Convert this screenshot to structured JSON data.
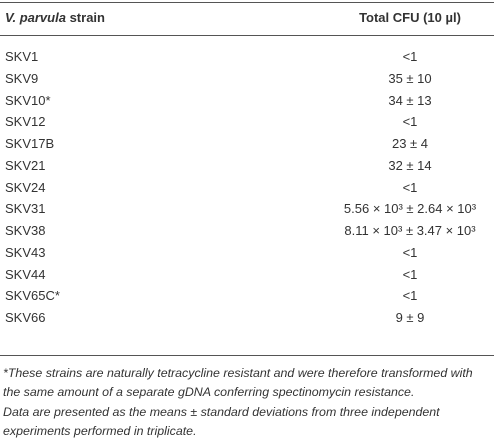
{
  "table": {
    "header": {
      "strain": [
        "V. parvula",
        "strain"
      ],
      "cfu": "Total CFU (10 µl)"
    },
    "rows": [
      [
        "SKV1",
        "<1"
      ],
      [
        "SKV9",
        "35 ± 10"
      ],
      [
        "SKV10*",
        "34 ± 13"
      ],
      [
        "SKV12",
        "<1"
      ],
      [
        "SKV17B",
        "23 ± 4"
      ],
      [
        "SKV21",
        "32 ± 14"
      ],
      [
        "SKV24",
        "<1"
      ],
      [
        "SKV31",
        "5.56 × 10³ ± 2.64 × 10³"
      ],
      [
        "SKV38",
        "8.11 × 10³ ± 3.47 × 10³"
      ],
      [
        "SKV43",
        "<1"
      ],
      [
        "SKV44",
        "<1"
      ],
      [
        "SKV65C*",
        "<1"
      ],
      [
        "SKV66",
        "9 ± 9"
      ]
    ],
    "footnotes": [
      "*These strains are naturally tetracycline resistant and were therefore transformed with the same amount of a separate gDNA conferring spectinomycin resistance.",
      "Data are presented as the means ± standard deviations from three independent experiments performed in triplicate."
    ]
  }
}
